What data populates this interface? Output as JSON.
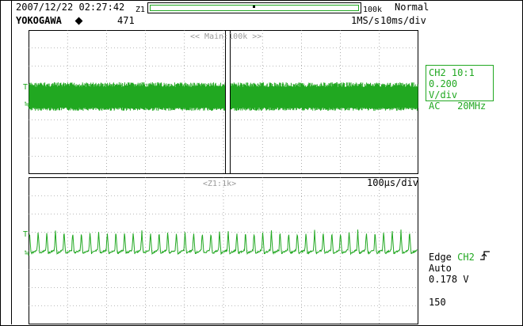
{
  "header": {
    "datetime": "2007/12/22 02:27:42",
    "zoom_marker": "Z1",
    "memory_length": "100k",
    "brand": "YOKOGAWA",
    "acq_count": "471",
    "trigger_mode": "Normal",
    "sample_rate": "1MS/s",
    "timebase": "10ms/div"
  },
  "main_window": {
    "label": "<< Main:100k >>"
  },
  "zoom_window": {
    "label": "<Z1:1k>",
    "timebase": "100µs/div"
  },
  "channel_info": {
    "name": "CH2 10:1",
    "vdiv": "0.200 V/div",
    "coupling": "AC",
    "bandwidth": "20MHz",
    "color": "#21a821"
  },
  "trigger_info": {
    "type": "Edge",
    "source": "CH2",
    "mode": "Auto",
    "level": "0.178 V"
  },
  "footer": {
    "zoom_count": "150"
  },
  "markers": {
    "ground": "≒",
    "trigger_level": "T"
  }
}
